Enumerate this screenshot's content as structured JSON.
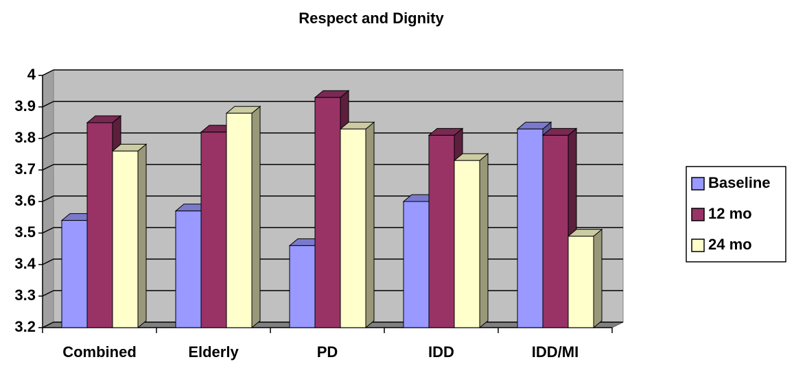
{
  "chart_data": {
    "type": "bar3d",
    "title": "Respect and Dignity",
    "categories": [
      "Combined",
      "Elderly",
      "PD",
      "IDD",
      "IDD/MI"
    ],
    "series": [
      {
        "name": "Baseline",
        "color": "#9999ff",
        "values": [
          3.54,
          3.57,
          3.46,
          3.6,
          3.83
        ]
      },
      {
        "name": "12 mo",
        "color": "#993366",
        "values": [
          3.85,
          3.82,
          3.93,
          3.81,
          3.81
        ]
      },
      {
        "name": "24 mo",
        "color": "#ffffcc",
        "values": [
          3.76,
          3.88,
          3.83,
          3.73,
          3.49
        ]
      }
    ],
    "ylim": [
      3.2,
      4
    ],
    "yticks": [
      3.2,
      3.3,
      3.4,
      3.5,
      3.6,
      3.7,
      3.8,
      3.9,
      4
    ],
    "grid": true,
    "legend": "right"
  }
}
